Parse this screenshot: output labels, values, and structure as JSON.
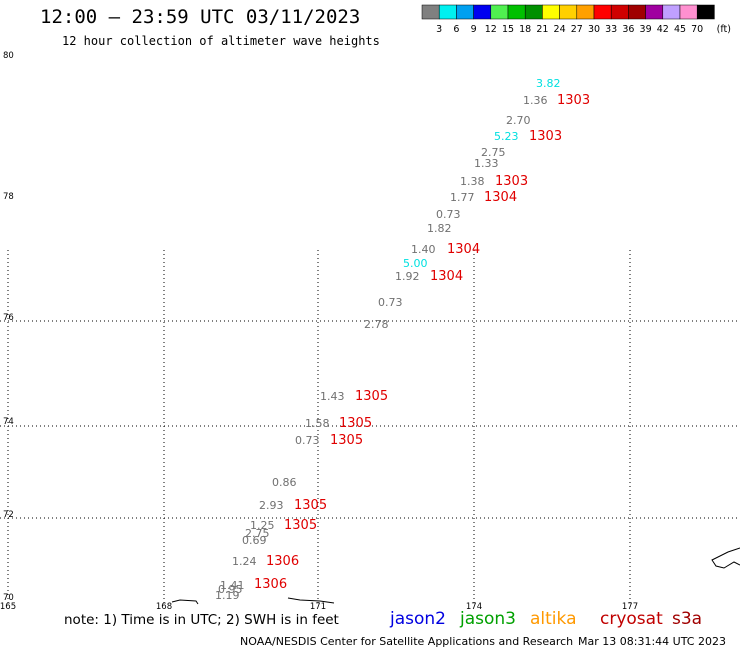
{
  "header": {
    "title": "12:00 – 23:59 UTC 03/11/2023",
    "subtitle": "12 hour collection of altimeter wave heights"
  },
  "legend": {
    "unit": "(ft)",
    "bins": [
      {
        "label": "3",
        "color": "#808080"
      },
      {
        "label": "6",
        "color": "#00f0f0"
      },
      {
        "label": "9",
        "color": "#00a0f0"
      },
      {
        "label": "12",
        "color": "#0000f0"
      },
      {
        "label": "15",
        "color": "#50f050"
      },
      {
        "label": "18",
        "color": "#00c000"
      },
      {
        "label": "21",
        "color": "#009000"
      },
      {
        "label": "24",
        "color": "#ffff00"
      },
      {
        "label": "27",
        "color": "#ffd000"
      },
      {
        "label": "30",
        "color": "#ffa000"
      },
      {
        "label": "33",
        "color": "#ff0000"
      },
      {
        "label": "36",
        "color": "#d00000"
      },
      {
        "label": "39",
        "color": "#a00000"
      },
      {
        "label": "42",
        "color": "#a000a0"
      },
      {
        "label": "45",
        "color": "#c0a0ff"
      },
      {
        "label": "70",
        "color": "#ff90d0"
      },
      {
        "label": "",
        "color": "#000000"
      }
    ]
  },
  "axes": {
    "lat_labels": [
      "80",
      "78",
      "76",
      "74",
      "72",
      "70"
    ],
    "lon_labels": [
      "165",
      "168",
      "171",
      "174",
      "177"
    ]
  },
  "observations": [
    {
      "text": "3.82",
      "color": "#00e0e0"
    },
    {
      "text": "1.36",
      "color": "#707070"
    },
    {
      "text": "2.70",
      "color": "#707070"
    },
    {
      "text": "5.23",
      "color": "#00e0e0"
    },
    {
      "text": "2.75",
      "color": "#707070"
    },
    {
      "text": "1.33",
      "color": "#707070"
    },
    {
      "text": "1.38",
      "color": "#707070"
    },
    {
      "text": "1.77",
      "color": "#707070"
    },
    {
      "text": "0.73",
      "color": "#707070"
    },
    {
      "text": "1.82",
      "color": "#707070"
    },
    {
      "text": "1.40",
      "color": "#707070"
    },
    {
      "text": "5.00",
      "color": "#00e0e0"
    },
    {
      "text": "1.92",
      "color": "#707070"
    },
    {
      "text": "0.73",
      "color": "#707070"
    },
    {
      "text": "2.78",
      "color": "#707070"
    },
    {
      "text": "1.43",
      "color": "#707070"
    },
    {
      "text": "1.58",
      "color": "#707070"
    },
    {
      "text": "0.73",
      "color": "#707070"
    },
    {
      "text": "0.86",
      "color": "#707070"
    },
    {
      "text": "2.93",
      "color": "#707070"
    },
    {
      "text": "1.25",
      "color": "#707070"
    },
    {
      "text": "2.75",
      "color": "#707070"
    },
    {
      "text": "0.69",
      "color": "#707070"
    },
    {
      "text": "1.24",
      "color": "#707070"
    },
    {
      "text": "1.41",
      "color": "#707070"
    },
    {
      "text": "0.95",
      "color": "#707070"
    },
    {
      "text": "1.19",
      "color": "#707070"
    }
  ],
  "time_labels": [
    {
      "text": "1303"
    },
    {
      "text": "1303"
    },
    {
      "text": "1303"
    },
    {
      "text": "1304"
    },
    {
      "text": "1304"
    },
    {
      "text": "1304"
    },
    {
      "text": "1305"
    },
    {
      "text": "1305"
    },
    {
      "text": "1305"
    },
    {
      "text": "1305"
    },
    {
      "text": "1305"
    },
    {
      "text": "1306"
    },
    {
      "text": "1306"
    }
  ],
  "note": "note: 1) Time is in UTC; 2) SWH is in feet",
  "satellites": [
    {
      "name": "jason2",
      "color": "#0000e0"
    },
    {
      "name": "jason3",
      "color": "#00a000"
    },
    {
      "name": "altika",
      "color": "#ff9900"
    },
    {
      "name": "cryosat",
      "color": "#c00000"
    },
    {
      "name": "s3a",
      "color": "#a00000"
    }
  ],
  "footer": {
    "left": "NOAA/NESDIS Center for Satellite Applications and Research",
    "right": "Mar 13 08:31:44 UTC 2023"
  }
}
